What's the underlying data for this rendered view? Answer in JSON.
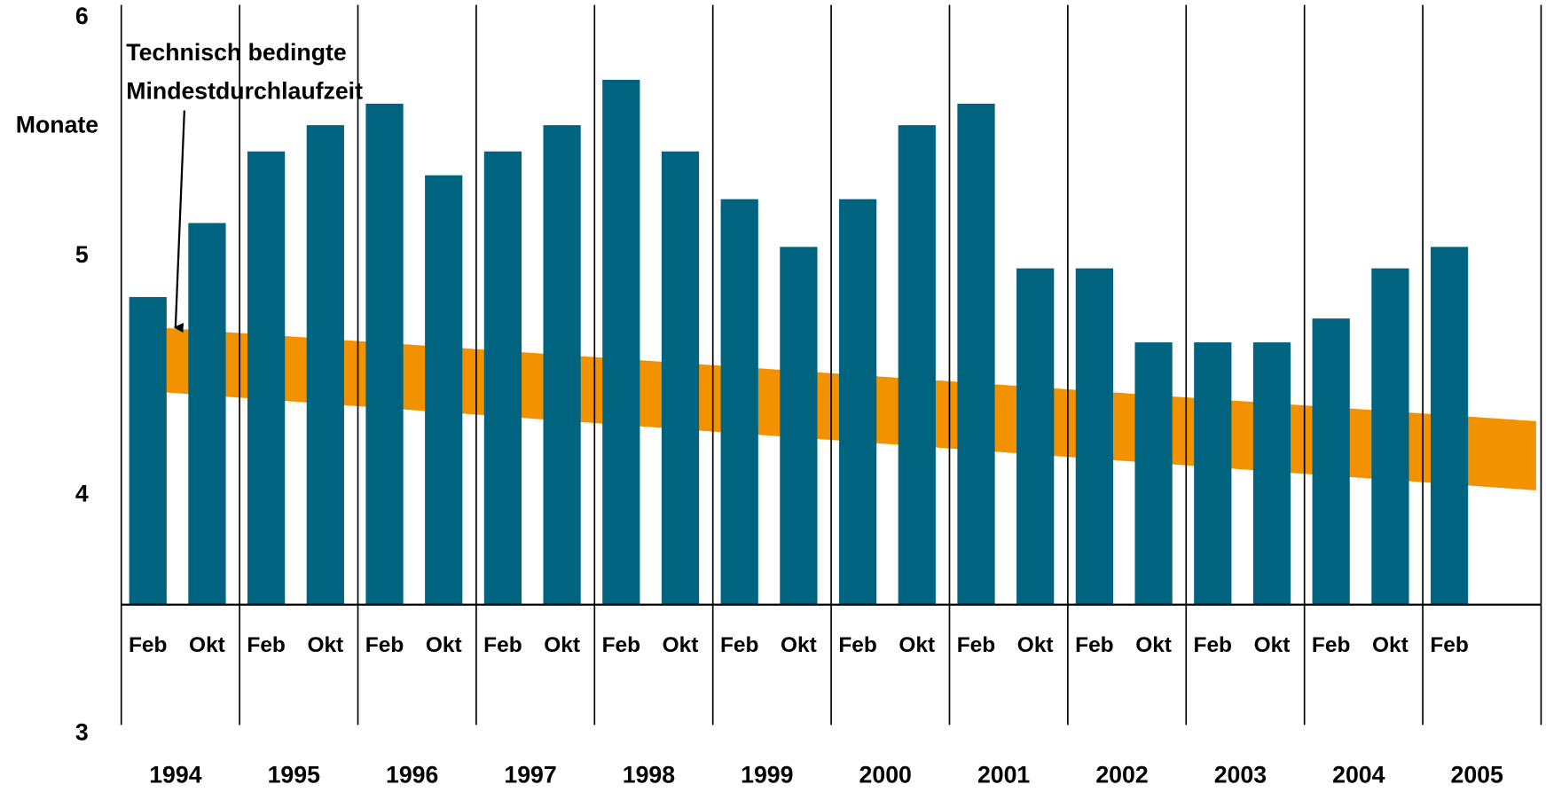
{
  "chart_data": {
    "type": "bar",
    "y_label": "Monate",
    "annotation": [
      "Technisch bedingte",
      "Mindestdurchlaufzeit"
    ],
    "categories": [
      "Feb",
      "Okt",
      "Feb",
      "Okt",
      "Feb",
      "Okt",
      "Feb",
      "Okt",
      "Feb",
      "Okt",
      "Feb",
      "Okt",
      "Feb",
      "Okt",
      "Feb",
      "Okt",
      "Feb",
      "Okt",
      "Feb",
      "Okt",
      "Feb",
      "Okt",
      "Feb"
    ],
    "years": [
      "1994",
      "1995",
      "1996",
      "1997",
      "1998",
      "1999",
      "2000",
      "2001",
      "2002",
      "2003",
      "2004",
      "2005"
    ],
    "values": [
      4.83,
      5.14,
      5.44,
      5.55,
      5.64,
      5.34,
      5.44,
      5.55,
      5.74,
      5.44,
      5.24,
      5.04,
      5.24,
      5.55,
      5.64,
      4.95,
      4.95,
      4.64,
      4.64,
      4.64,
      4.74,
      4.95,
      5.04
    ],
    "color": "#006480",
    "band": {
      "upper": [
        4.7,
        4.31
      ],
      "lower": [
        4.43,
        4.02
      ],
      "color": "#f39200"
    },
    "ylim": [
      3,
      6
    ],
    "yticks": [
      3,
      4,
      5,
      6
    ],
    "grid": false
  }
}
